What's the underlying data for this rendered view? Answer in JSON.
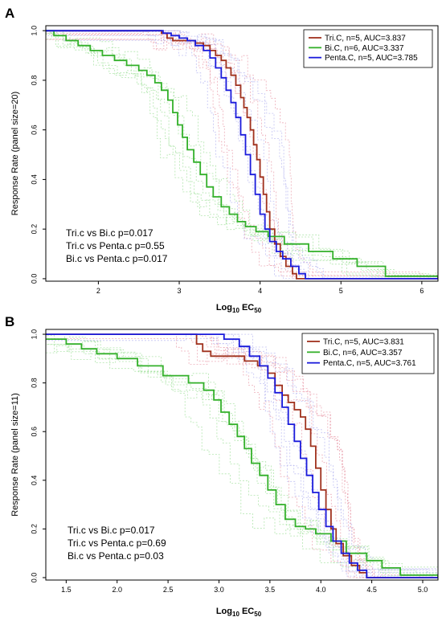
{
  "chart_data": [
    {
      "panel": "A",
      "type": "line",
      "title": "",
      "xlabel_main": "Log",
      "xlabel_sub": "10",
      "xlabel_after": " EC",
      "xlabel_sub2": "50",
      "ylabel": "Response Rate (panel size=20)",
      "xlim": [
        1.35,
        6.2
      ],
      "ylim": [
        -0.01,
        1.02
      ],
      "x_ticks": [
        2,
        3,
        4,
        5,
        6
      ],
      "x_tick_labels": [
        "2",
        "3",
        "4",
        "5",
        "6"
      ],
      "y_ticks": [
        0.0,
        0.2,
        0.4,
        0.6,
        0.8,
        1.0
      ],
      "y_tick_labels": [
        "0.0",
        "0.2",
        "0.4",
        "0.6",
        "0.8",
        "1.0"
      ],
      "legend": {
        "placement": "top-right",
        "entries": [
          "Tri.C, n=5, AUC=3.837",
          "Bi.C, n=6, AUC=3.337",
          "Penta.C, n=5, AUC=3.785"
        ]
      },
      "annotations": [
        "Tri.c vs Bi.c p=0.017",
        "Tri.c vs Penta.c p=0.55",
        "Bi.c vs Penta.c p=0.017"
      ],
      "series": [
        {
          "name": "Tri.C",
          "color": "#a0321e",
          "individual_color": "#e89aa8",
          "x": [
            1.35,
            2.78,
            2.85,
            2.92,
            3.05,
            3.2,
            3.3,
            3.38,
            3.45,
            3.52,
            3.58,
            3.64,
            3.7,
            3.76,
            3.8,
            3.84,
            3.88,
            3.92,
            3.96,
            4.0,
            4.04,
            4.08,
            4.12,
            4.18,
            4.25,
            4.32,
            4.4,
            4.45,
            6.2
          ],
          "y": [
            1.0,
            0.99,
            0.97,
            0.96,
            0.96,
            0.95,
            0.94,
            0.92,
            0.9,
            0.88,
            0.85,
            0.82,
            0.78,
            0.73,
            0.69,
            0.65,
            0.6,
            0.54,
            0.48,
            0.41,
            0.34,
            0.27,
            0.2,
            0.14,
            0.09,
            0.05,
            0.02,
            0.0,
            0.0
          ]
        },
        {
          "name": "Bi.C",
          "color": "#33b02a",
          "individual_color": "#9fe09a",
          "x": [
            1.35,
            1.45,
            1.6,
            1.75,
            1.9,
            2.05,
            2.2,
            2.35,
            2.5,
            2.6,
            2.7,
            2.78,
            2.86,
            2.92,
            2.98,
            3.04,
            3.1,
            3.18,
            3.26,
            3.34,
            3.42,
            3.52,
            3.62,
            3.72,
            3.82,
            3.95,
            4.1,
            4.3,
            4.6,
            4.9,
            5.2,
            5.55,
            6.2
          ],
          "y": [
            1.0,
            0.98,
            0.96,
            0.94,
            0.92,
            0.9,
            0.88,
            0.86,
            0.84,
            0.82,
            0.79,
            0.76,
            0.72,
            0.67,
            0.62,
            0.57,
            0.52,
            0.47,
            0.42,
            0.37,
            0.33,
            0.29,
            0.26,
            0.23,
            0.21,
            0.19,
            0.17,
            0.14,
            0.11,
            0.08,
            0.05,
            0.01,
            0.0
          ]
        },
        {
          "name": "Penta.C",
          "color": "#1a1adb",
          "individual_color": "#b4b4f0",
          "x": [
            1.35,
            2.8,
            2.9,
            3.0,
            3.1,
            3.2,
            3.3,
            3.38,
            3.45,
            3.52,
            3.58,
            3.64,
            3.7,
            3.76,
            3.82,
            3.88,
            3.94,
            4.0,
            4.06,
            4.12,
            4.2,
            4.28,
            4.38,
            4.48,
            4.56,
            6.2
          ],
          "y": [
            1.0,
            0.99,
            0.98,
            0.97,
            0.96,
            0.94,
            0.92,
            0.89,
            0.85,
            0.81,
            0.76,
            0.71,
            0.65,
            0.58,
            0.5,
            0.42,
            0.34,
            0.26,
            0.2,
            0.15,
            0.11,
            0.08,
            0.05,
            0.02,
            0.0,
            0.0
          ]
        }
      ]
    },
    {
      "panel": "B",
      "type": "line",
      "title": "",
      "xlabel_main": "Log",
      "xlabel_sub": "10",
      "xlabel_after": " EC",
      "xlabel_sub2": "50",
      "ylabel": "Response Rate (panel size=11)",
      "xlim": [
        1.3,
        5.15
      ],
      "ylim": [
        -0.01,
        1.02
      ],
      "x_ticks": [
        1.5,
        2.0,
        2.5,
        3.0,
        3.5,
        4.0,
        4.5,
        5.0
      ],
      "x_tick_labels": [
        "1.5",
        "2.0",
        "2.5",
        "3.0",
        "3.5",
        "4.0",
        "4.5",
        "5.0"
      ],
      "y_ticks": [
        0.0,
        0.2,
        0.4,
        0.6,
        0.8,
        1.0
      ],
      "y_tick_labels": [
        "0.0",
        "0.2",
        "0.4",
        "0.6",
        "0.8",
        "1.0"
      ],
      "legend": {
        "placement": "top-right",
        "entries": [
          "Tri.C, n=5, AUC=3.831",
          "Bi.C, n=6, AUC=3.357",
          "Penta.C, n=5, AUC=3.761"
        ]
      },
      "annotations": [
        "Tri.c vs Bi.c p=0.017",
        "Tri.c vs Penta.c p=0.69",
        "Bi.c vs Penta.c p=0.03"
      ],
      "series": [
        {
          "name": "Tri.C",
          "color": "#a0321e",
          "individual_color": "#e89aa8",
          "x": [
            1.3,
            2.78,
            2.84,
            2.92,
            3.1,
            3.25,
            3.38,
            3.48,
            3.55,
            3.62,
            3.68,
            3.74,
            3.8,
            3.85,
            3.9,
            3.95,
            4.0,
            4.05,
            4.1,
            4.15,
            4.22,
            4.3,
            4.38,
            4.45,
            5.15
          ],
          "y": [
            1.0,
            0.96,
            0.93,
            0.91,
            0.91,
            0.89,
            0.87,
            0.84,
            0.79,
            0.75,
            0.72,
            0.69,
            0.66,
            0.61,
            0.54,
            0.45,
            0.36,
            0.28,
            0.2,
            0.14,
            0.09,
            0.05,
            0.02,
            0.0,
            0.0
          ]
        },
        {
          "name": "Bi.C",
          "color": "#33b02a",
          "individual_color": "#9fe09a",
          "x": [
            1.3,
            1.5,
            1.65,
            1.8,
            2.0,
            2.2,
            2.45,
            2.7,
            2.85,
            2.95,
            3.02,
            3.1,
            3.18,
            3.25,
            3.32,
            3.4,
            3.48,
            3.56,
            3.65,
            3.75,
            3.85,
            3.95,
            4.1,
            4.25,
            4.45,
            4.6,
            4.78,
            5.15
          ],
          "y": [
            0.98,
            0.96,
            0.94,
            0.92,
            0.9,
            0.87,
            0.83,
            0.8,
            0.77,
            0.73,
            0.68,
            0.63,
            0.58,
            0.53,
            0.47,
            0.42,
            0.36,
            0.3,
            0.24,
            0.21,
            0.2,
            0.18,
            0.15,
            0.1,
            0.07,
            0.04,
            0.01,
            0.0
          ]
        },
        {
          "name": "Penta.C",
          "color": "#1a1adb",
          "individual_color": "#b4b4f0",
          "x": [
            1.3,
            2.78,
            3.05,
            3.2,
            3.3,
            3.4,
            3.48,
            3.55,
            3.62,
            3.68,
            3.74,
            3.8,
            3.86,
            3.92,
            3.98,
            4.05,
            4.12,
            4.2,
            4.28,
            4.36,
            4.45,
            5.15
          ],
          "y": [
            1.0,
            1.0,
            0.98,
            0.95,
            0.91,
            0.87,
            0.82,
            0.76,
            0.7,
            0.63,
            0.56,
            0.49,
            0.42,
            0.35,
            0.28,
            0.21,
            0.15,
            0.1,
            0.06,
            0.03,
            0.0,
            0.0
          ]
        }
      ]
    }
  ]
}
